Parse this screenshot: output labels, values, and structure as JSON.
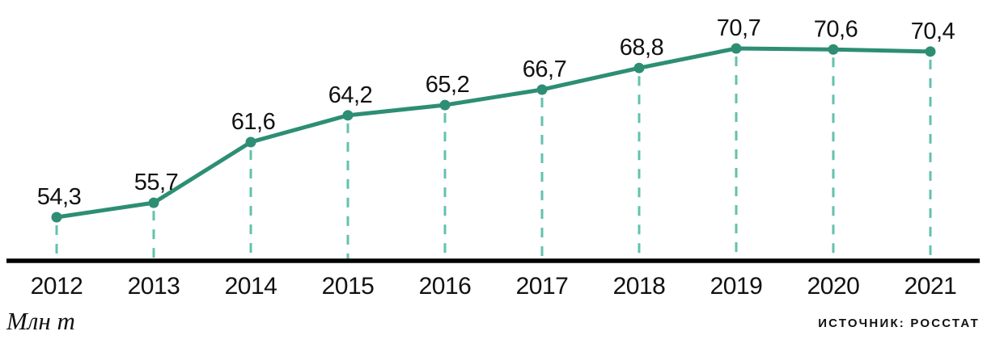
{
  "chart_data": {
    "type": "line",
    "title": "",
    "xlabel": "",
    "ylabel": "Млн т",
    "source": "ИСТОЧНИК: РОССТАТ",
    "categories": [
      "2012",
      "2013",
      "2014",
      "2015",
      "2016",
      "2017",
      "2018",
      "2019",
      "2020",
      "2021"
    ],
    "values": [
      54.3,
      55.7,
      61.6,
      64.2,
      65.2,
      66.7,
      68.8,
      70.7,
      70.6,
      70.4
    ],
    "value_labels": [
      "54,3",
      "55,7",
      "61,6",
      "64,2",
      "65,2",
      "66,7",
      "68,8",
      "70,7",
      "70,6",
      "70,4"
    ],
    "ylim": [
      54.3,
      70.7
    ],
    "grid": false,
    "legend": false,
    "droplines": "dashed",
    "colors": {
      "line": "#2d8e74",
      "point": "#2d8e74",
      "dash": "#63c1ad",
      "axis": "#000000",
      "text": "#111111"
    }
  }
}
